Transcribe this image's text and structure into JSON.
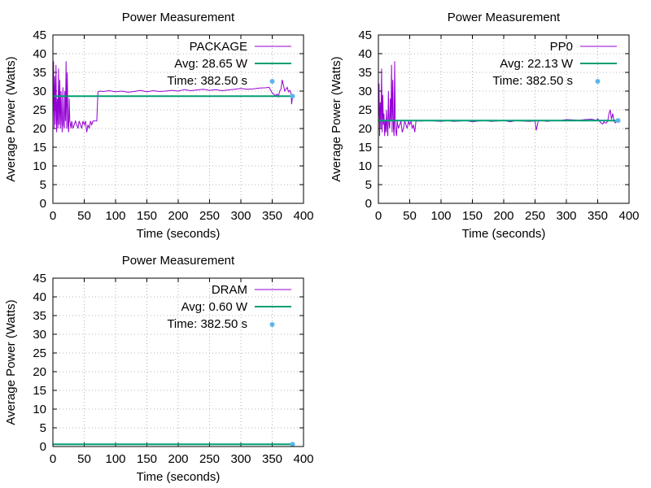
{
  "chart_data": [
    {
      "type": "line",
      "title": "Power Measurement",
      "xlabel": "Time (seconds)",
      "ylabel": "Average Power (Watts)",
      "xlim": [
        0,
        400
      ],
      "ylim": [
        0,
        45
      ],
      "xticks": [
        0,
        50,
        100,
        150,
        200,
        250,
        300,
        350,
        400
      ],
      "yticks": [
        0,
        5,
        10,
        15,
        20,
        25,
        30,
        35,
        40,
        45
      ],
      "grid": true,
      "legend_position": "top-right",
      "colors": {
        "series": "#9400d3",
        "avg": "#009e73",
        "time": "#56b4e9"
      },
      "legend": {
        "series": "PACKAGE",
        "avg": "Avg: 28.65 W",
        "time": "Time: 382.50 s"
      },
      "series": [
        {
          "name": "PACKAGE",
          "x": [
            0,
            1,
            2,
            3,
            4,
            5,
            6,
            7,
            8,
            9,
            10,
            11,
            12,
            13,
            14,
            15,
            16,
            17,
            18,
            19,
            20,
            21,
            22,
            23,
            24,
            25,
            26,
            27,
            28,
            29,
            30,
            32,
            34,
            36,
            38,
            40,
            42,
            44,
            46,
            48,
            50,
            52,
            54,
            56,
            58,
            60,
            62,
            64,
            66,
            68,
            70,
            72,
            75,
            80,
            90,
            100,
            110,
            120,
            130,
            140,
            150,
            160,
            170,
            180,
            190,
            200,
            210,
            220,
            230,
            240,
            250,
            260,
            270,
            280,
            290,
            300,
            310,
            320,
            330,
            340,
            345,
            350,
            355,
            358,
            360,
            362,
            364,
            366,
            368,
            370,
            372,
            374,
            376,
            378,
            380,
            381,
            382.5
          ],
          "y": [
            23,
            38,
            20,
            34,
            21,
            37,
            19,
            28,
            20,
            36,
            21,
            33,
            20,
            30,
            22,
            19,
            31,
            21,
            20,
            30,
            22,
            38,
            20,
            35,
            21,
            19,
            28,
            22,
            21,
            20,
            22,
            20,
            21,
            22,
            21,
            20,
            22,
            21,
            20,
            22,
            21,
            22,
            19,
            21,
            20,
            22,
            21,
            22,
            22,
            22,
            22,
            29.8,
            30,
            29.9,
            30.1,
            29.8,
            30,
            29.7,
            29.9,
            30.2,
            29.8,
            30.1,
            29.9,
            30,
            30.2,
            30,
            30.4,
            30.1,
            30.3,
            30.5,
            30.2,
            30.4,
            30.1,
            30.3,
            30.5,
            30.7,
            30.5,
            30.6,
            30.8,
            30.9,
            31,
            29.5,
            28.8,
            29.2,
            28.5,
            30,
            30.5,
            33,
            31.5,
            30,
            30.5,
            31,
            29.8,
            30.2,
            29.5,
            26.5,
            28.7
          ]
        },
        {
          "name": "Avg: 28.65 W",
          "x": [
            0,
            382.5
          ],
          "y": [
            28.65,
            28.65
          ]
        }
      ],
      "points": [
        {
          "name": "Time: 382.50 s",
          "x": 382.5,
          "y": 28.65
        }
      ]
    },
    {
      "type": "line",
      "title": "Power Measurement",
      "xlabel": "Time (seconds)",
      "ylabel": "Average Power (Watts)",
      "xlim": [
        0,
        400
      ],
      "ylim": [
        0,
        45
      ],
      "xticks": [
        0,
        50,
        100,
        150,
        200,
        250,
        300,
        350,
        400
      ],
      "yticks": [
        0,
        5,
        10,
        15,
        20,
        25,
        30,
        35,
        40,
        45
      ],
      "grid": true,
      "legend_position": "top-right",
      "colors": {
        "series": "#9400d3",
        "avg": "#009e73",
        "time": "#56b4e9"
      },
      "legend": {
        "series": "PP0",
        "avg": "Avg: 22.13 W",
        "time": "Time: 382.50 s"
      },
      "series": [
        {
          "name": "PP0",
          "x": [
            0,
            1,
            2,
            3,
            4,
            5,
            6,
            7,
            8,
            9,
            10,
            11,
            12,
            13,
            14,
            15,
            16,
            17,
            18,
            19,
            20,
            21,
            22,
            23,
            24,
            25,
            26,
            27,
            28,
            29,
            30,
            32,
            34,
            36,
            38,
            40,
            42,
            44,
            46,
            48,
            50,
            52,
            54,
            56,
            58,
            60,
            65,
            70,
            80,
            90,
            100,
            110,
            120,
            130,
            140,
            150,
            160,
            170,
            180,
            190,
            200,
            210,
            220,
            230,
            240,
            250,
            252,
            255,
            260,
            270,
            280,
            290,
            300,
            310,
            320,
            330,
            340,
            345,
            348,
            350,
            355,
            358,
            360,
            362,
            364,
            366,
            368,
            370,
            372,
            374,
            376,
            378,
            380,
            382.5
          ],
          "y": [
            22,
            32,
            18,
            27,
            20,
            36,
            19,
            29,
            21,
            24,
            18,
            22,
            19,
            25,
            20,
            18,
            30,
            21,
            20,
            28,
            22,
            37,
            19,
            33,
            20,
            18,
            38,
            21,
            19,
            18,
            22,
            20,
            21,
            22,
            19,
            20,
            22,
            21,
            20,
            22,
            21,
            22,
            20,
            21,
            19,
            22,
            22,
            22,
            22.2,
            22,
            21.9,
            22.1,
            21.9,
            22,
            22.1,
            21.8,
            22,
            22.1,
            21.9,
            22,
            22.2,
            21.8,
            22.1,
            22,
            21.9,
            22,
            19.5,
            22,
            22.1,
            21.9,
            22.2,
            22.1,
            22.4,
            22.3,
            22.2,
            22.4,
            22.5,
            22.3,
            22.1,
            22.6,
            21.5,
            21.2,
            21.8,
            21.5,
            21.5,
            22,
            24,
            25,
            22.5,
            24,
            22,
            21.5,
            21.8,
            22.13
          ]
        },
        {
          "name": "Avg: 22.13 W",
          "x": [
            0,
            382.5
          ],
          "y": [
            22.13,
            22.13
          ]
        }
      ],
      "points": [
        {
          "name": "Time: 382.50 s",
          "x": 382.5,
          "y": 22.13
        }
      ]
    },
    {
      "type": "line",
      "title": "Power Measurement",
      "xlabel": "Time (seconds)",
      "ylabel": "Average Power (Watts)",
      "xlim": [
        0,
        400
      ],
      "ylim": [
        0,
        45
      ],
      "xticks": [
        0,
        50,
        100,
        150,
        200,
        250,
        300,
        350,
        400
      ],
      "yticks": [
        0,
        5,
        10,
        15,
        20,
        25,
        30,
        35,
        40,
        45
      ],
      "grid": true,
      "legend_position": "top-right",
      "colors": {
        "series": "#9400d3",
        "avg": "#009e73",
        "time": "#56b4e9"
      },
      "legend": {
        "series": "DRAM",
        "avg": "Avg: 0.60 W",
        "time": "Time: 382.50 s"
      },
      "series": [
        {
          "name": "DRAM",
          "x": [
            0,
            20,
            40,
            60,
            80,
            100,
            150,
            200,
            250,
            300,
            350,
            382.5
          ],
          "y": [
            0.6,
            0.65,
            0.6,
            0.55,
            0.6,
            0.6,
            0.6,
            0.6,
            0.6,
            0.6,
            0.6,
            0.6
          ]
        },
        {
          "name": "Avg: 0.60 W",
          "x": [
            0,
            382.5
          ],
          "y": [
            0.6,
            0.6
          ]
        }
      ],
      "points": [
        {
          "name": "Time: 382.50 s",
          "x": 382.5,
          "y": 0.6
        }
      ]
    }
  ]
}
